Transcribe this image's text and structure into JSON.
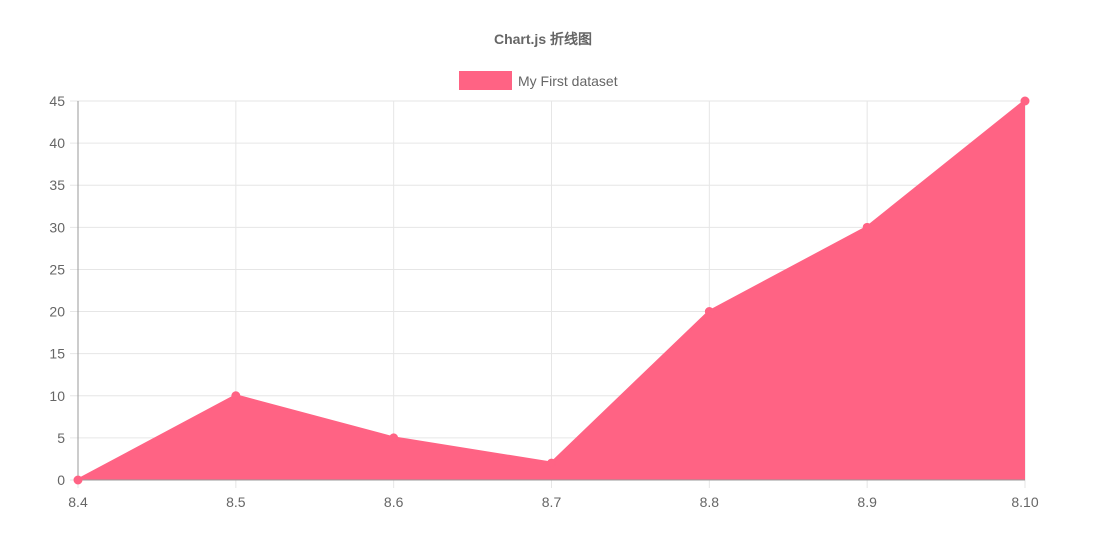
{
  "chart_data": {
    "type": "area",
    "title": "Chart.js 折线图",
    "categories": [
      "8.4",
      "8.5",
      "8.6",
      "8.7",
      "8.8",
      "8.9",
      "8.10"
    ],
    "series": [
      {
        "name": "My First dataset",
        "values": [
          0,
          10,
          5,
          2,
          20,
          30,
          45
        ],
        "color": "#ff6384"
      }
    ],
    "ylim": [
      0,
      45
    ],
    "yticks": [
      0,
      5,
      10,
      15,
      20,
      25,
      30,
      35,
      40,
      45
    ],
    "grid": true,
    "legend": "top-center",
    "xlabel": "",
    "ylabel": ""
  }
}
